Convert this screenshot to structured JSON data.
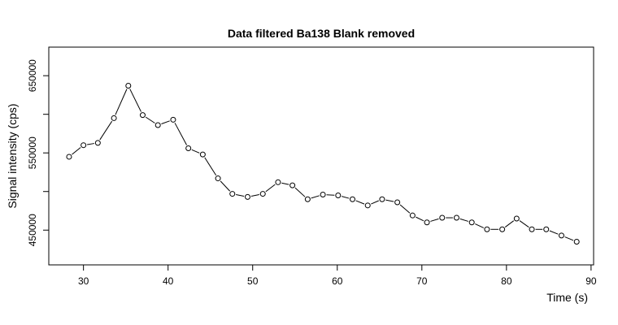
{
  "chart_data": {
    "type": "line",
    "title": "Data filtered Ba138 Blank removed",
    "xlabel": "Time (s)",
    "ylabel": "Signal intensity (cps)",
    "xlim": [
      25.9,
      90.3
    ],
    "ylim": [
      405000,
      687000
    ],
    "xticks": [
      30,
      40,
      50,
      60,
      70,
      80,
      90
    ],
    "yticks": [
      400000,
      450000,
      500000,
      550000,
      600000,
      650000
    ],
    "ytick_labels_shown": [
      "450000",
      "550000",
      "650000"
    ],
    "grid": false,
    "legend": "none",
    "markers": "open-circle",
    "line_color": "#000000",
    "series": [
      {
        "x": [
          28.3,
          30.0,
          31.7,
          33.6,
          35.3,
          37.0,
          38.8,
          40.6,
          42.4,
          44.1,
          45.9,
          47.6,
          49.4,
          51.2,
          53.0,
          54.7,
          56.5,
          58.3,
          60.1,
          61.8,
          63.6,
          65.3,
          67.1,
          68.9,
          70.6,
          72.4,
          74.1,
          75.9,
          77.7,
          79.5,
          81.2,
          83.0,
          84.7,
          86.5,
          88.3
        ],
        "y": [
          545000,
          560000,
          563000,
          595000,
          637000,
          599000,
          586000,
          593000,
          556000,
          548000,
          517000,
          497000,
          493000,
          497000,
          512000,
          508000,
          490000,
          496000,
          495000,
          490000,
          482000,
          490000,
          486000,
          469000,
          460000,
          466000,
          466000,
          460000,
          451000,
          451000,
          465000,
          451000,
          451000,
          443000,
          435000
        ]
      }
    ]
  }
}
